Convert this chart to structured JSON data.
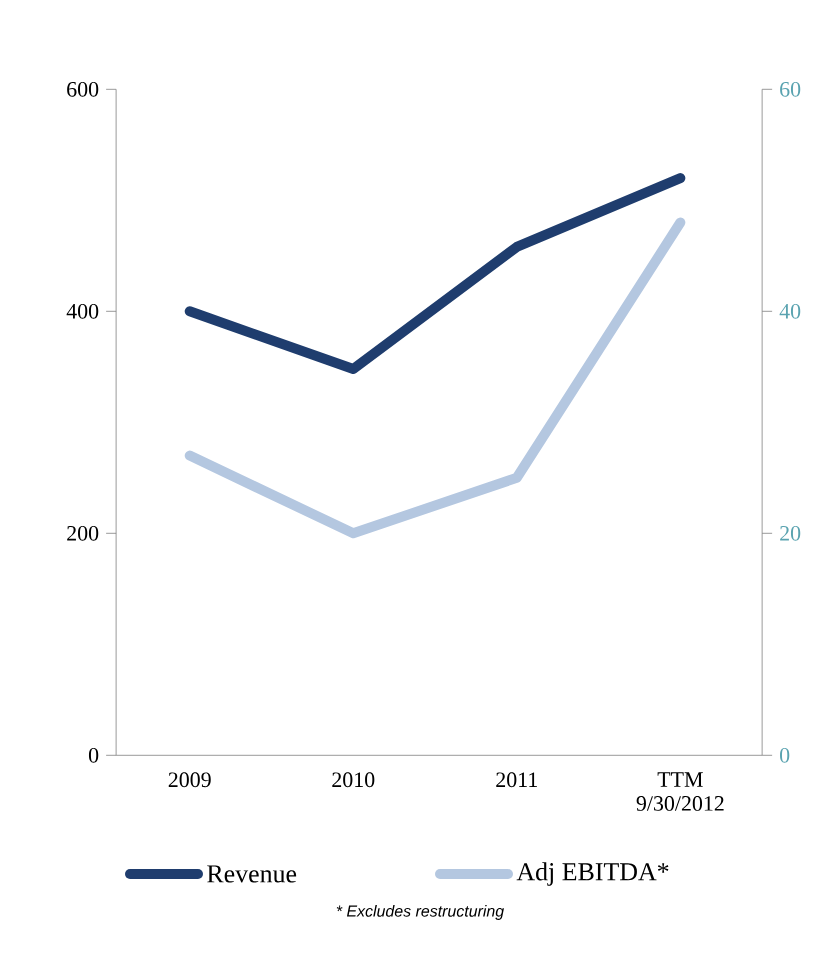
{
  "chart_data": {
    "type": "line",
    "categories": [
      "2009",
      "2010",
      "2011",
      "TTM 9/30/2012"
    ],
    "series": [
      {
        "name": "Revenue",
        "color": "#1f3d6e",
        "values": [
          400,
          348,
          458,
          520
        ]
      },
      {
        "name": "Adj EBITDA*",
        "color": "#b4c7e0",
        "values": [
          27,
          20,
          25,
          48
        ],
        "axis": "y2"
      }
    ],
    "ylim": [
      0,
      600
    ],
    "yticks": [
      0,
      200,
      400,
      600
    ],
    "y2lim": [
      0,
      60
    ],
    "y2ticks": [
      0,
      20,
      40,
      60
    ],
    "legend": "bottom",
    "grid": false,
    "marker": "none",
    "line_style": "solid",
    "annotations": [
      "* Excludes restructuring"
    ]
  }
}
